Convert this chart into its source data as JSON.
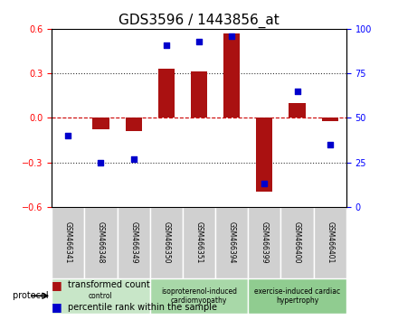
{
  "title": "GDS3596 / 1443856_at",
  "samples": [
    "GSM466341",
    "GSM466348",
    "GSM466349",
    "GSM466350",
    "GSM466351",
    "GSM466394",
    "GSM466399",
    "GSM466400",
    "GSM466401"
  ],
  "bar_values": [
    0.0,
    -0.08,
    -0.09,
    0.33,
    0.31,
    0.57,
    -0.5,
    0.1,
    -0.02
  ],
  "dot_values": [
    40,
    25,
    27,
    91,
    93,
    96,
    13,
    65,
    35
  ],
  "groups": [
    {
      "label": "control",
      "start": 0,
      "end": 3,
      "color": "#c8e6c8"
    },
    {
      "label": "isoproterenol-induced\ncardiomyopathy",
      "start": 3,
      "end": 6,
      "color": "#a8d8a8"
    },
    {
      "label": "exercise-induced cardiac\nhypertrophy",
      "start": 6,
      "end": 9,
      "color": "#90cc90"
    }
  ],
  "ylim_left": [
    -0.6,
    0.6
  ],
  "ylim_right": [
    0,
    100
  ],
  "yticks_left": [
    -0.6,
    -0.3,
    0,
    0.3,
    0.6
  ],
  "yticks_right": [
    0,
    25,
    50,
    75,
    100
  ],
  "bar_color": "#aa1111",
  "dot_color": "#0000cc",
  "zero_line_color": "#cc0000",
  "dotted_line_color": "#333333",
  "background_color": "#ffffff",
  "title_fontsize": 11,
  "tick_fontsize": 7,
  "label_fontsize": 8
}
